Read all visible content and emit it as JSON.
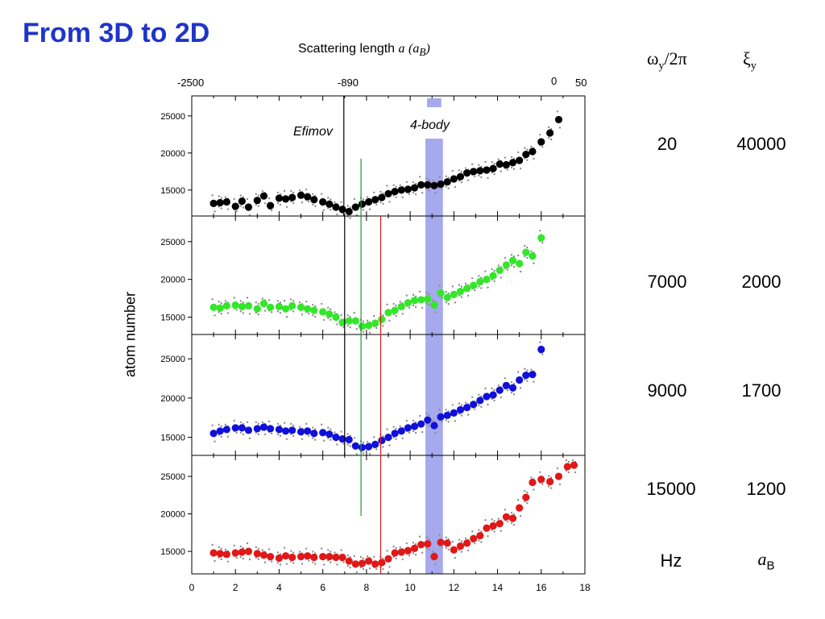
{
  "slide": {
    "title": "From 3D to 2D",
    "top_axis_label": "Scattering length",
    "top_axis_symbol": "a",
    "top_axis_unit": "(a",
    "top_axis_unit_sub": "B",
    "top_axis_unit_close": ")",
    "top_ticks": [
      "-2500",
      "-890",
      "0",
      "50"
    ],
    "ylabel": "atom number",
    "annot_efimov": "Efimov",
    "annot_4body": "4-body"
  },
  "table": {
    "col1_head": "ω",
    "col1_head_sub": "y",
    "col1_head_tail": "/2π",
    "col2_head": "ξ",
    "col2_head_sub": "y",
    "rows": [
      {
        "omega": "20",
        "xi": "40000"
      },
      {
        "omega": "7000",
        "xi": "2000"
      },
      {
        "omega": "9000",
        "xi": "1700"
      },
      {
        "omega": "15000",
        "xi": "1200"
      }
    ],
    "unit_omega": "Hz",
    "unit_xi": "a",
    "unit_xi_sub": "B"
  },
  "chart_data": {
    "type": "scatter",
    "xlim": [
      0,
      18
    ],
    "ylim": [
      11500,
      27500
    ],
    "x_ticks": [
      "0",
      "2",
      "4",
      "6",
      "8",
      "10",
      "12",
      "14",
      "16",
      "18"
    ],
    "y_ticks": [
      "15000",
      "20000",
      "25000"
    ],
    "ylabel": "atom number",
    "vlines": {
      "black": 7.0,
      "green": 7.75,
      "red": 8.65
    },
    "band": [
      10.7,
      11.5
    ],
    "series": [
      {
        "color": "#000000",
        "x": [
          1.0,
          1.3,
          1.6,
          2.0,
          2.3,
          2.6,
          3.0,
          3.3,
          3.6,
          4.0,
          4.3,
          4.6,
          5.0,
          5.3,
          5.6,
          6.0,
          6.3,
          6.6,
          6.9,
          7.2,
          7.5,
          7.8,
          8.1,
          8.4,
          8.7,
          9.0,
          9.3,
          9.6,
          9.9,
          10.2,
          10.5,
          10.8,
          11.1,
          11.4,
          11.7,
          12.0,
          12.3,
          12.6,
          12.9,
          13.2,
          13.5,
          13.8,
          14.1,
          14.4,
          14.7,
          15.0,
          15.3,
          15.6,
          16.0,
          16.4,
          16.8
        ],
        "y": [
          13200,
          13300,
          13400,
          12800,
          13500,
          12700,
          13600,
          14200,
          12900,
          13900,
          13800,
          14000,
          14300,
          14100,
          13700,
          13400,
          13100,
          12700,
          12400,
          12100,
          12700,
          13100,
          13400,
          13700,
          14000,
          14500,
          14800,
          15000,
          15100,
          15300,
          15700,
          15700,
          15600,
          15800,
          16100,
          16500,
          16800,
          17300,
          17500,
          17600,
          17700,
          17900,
          18500,
          18400,
          18700,
          19000,
          19800,
          20200,
          21500,
          22700,
          24500
        ]
      },
      {
        "color": "#33e62a",
        "x": [
          1.0,
          1.3,
          1.6,
          2.0,
          2.3,
          2.6,
          3.0,
          3.3,
          3.6,
          4.0,
          4.3,
          4.6,
          5.0,
          5.3,
          5.6,
          6.0,
          6.3,
          6.6,
          6.9,
          7.2,
          7.5,
          7.8,
          8.1,
          8.4,
          8.7,
          9.0,
          9.3,
          9.6,
          9.9,
          10.2,
          10.5,
          10.8,
          11.1,
          11.4,
          11.7,
          12.0,
          12.3,
          12.6,
          12.9,
          13.2,
          13.5,
          13.8,
          14.1,
          14.4,
          14.7,
          15.0,
          15.3,
          15.6,
          16.0
        ],
        "y": [
          16300,
          16200,
          16500,
          16600,
          16400,
          16500,
          16100,
          16800,
          16300,
          16400,
          16100,
          16500,
          16300,
          16100,
          15900,
          15700,
          15400,
          15000,
          14300,
          14500,
          14500,
          13800,
          13900,
          14200,
          14700,
          15600,
          15900,
          16400,
          16900,
          17200,
          17300,
          17400,
          16600,
          18200,
          17600,
          18000,
          18400,
          18800,
          19200,
          19700,
          20000,
          20500,
          21200,
          21900,
          22500,
          22100,
          23600,
          23100,
          25500
        ]
      },
      {
        "color": "#1010d8",
        "x": [
          1.0,
          1.3,
          1.6,
          2.0,
          2.3,
          2.6,
          3.0,
          3.3,
          3.6,
          4.0,
          4.3,
          4.6,
          5.0,
          5.3,
          5.6,
          6.0,
          6.3,
          6.6,
          6.9,
          7.2,
          7.5,
          7.8,
          8.1,
          8.4,
          8.7,
          9.0,
          9.3,
          9.6,
          9.9,
          10.2,
          10.5,
          10.8,
          11.1,
          11.4,
          11.7,
          12.0,
          12.3,
          12.6,
          12.9,
          13.2,
          13.5,
          13.8,
          14.1,
          14.4,
          14.7,
          15.0,
          15.3,
          15.6,
          16.0
        ],
        "y": [
          15500,
          15800,
          16000,
          16200,
          16200,
          15900,
          16100,
          16300,
          16100,
          16000,
          15800,
          15900,
          15700,
          15800,
          15500,
          15600,
          15400,
          15000,
          14800,
          14700,
          13900,
          13700,
          13800,
          14100,
          14600,
          15000,
          15500,
          15800,
          16200,
          16400,
          16700,
          17200,
          16500,
          17600,
          17800,
          18100,
          18500,
          18800,
          19200,
          19700,
          20200,
          20400,
          21000,
          21600,
          21300,
          22300,
          22900,
          23000,
          26200
        ]
      },
      {
        "color": "#e01818",
        "x": [
          1.0,
          1.3,
          1.6,
          2.0,
          2.3,
          2.6,
          3.0,
          3.3,
          3.6,
          4.0,
          4.3,
          4.6,
          5.0,
          5.3,
          5.6,
          6.0,
          6.3,
          6.6,
          6.9,
          7.2,
          7.5,
          7.8,
          8.1,
          8.4,
          8.7,
          9.0,
          9.3,
          9.6,
          9.9,
          10.2,
          10.5,
          10.8,
          11.1,
          11.4,
          11.7,
          12.0,
          12.3,
          12.6,
          12.9,
          13.2,
          13.5,
          13.8,
          14.1,
          14.4,
          14.7,
          15.0,
          15.3,
          15.6,
          16.0,
          16.4,
          16.8,
          17.2,
          17.5
        ],
        "y": [
          14800,
          14700,
          14600,
          14800,
          14900,
          15000,
          14700,
          14500,
          14300,
          14100,
          14400,
          14200,
          14300,
          14400,
          14200,
          14300,
          14300,
          14200,
          14200,
          13700,
          13300,
          13400,
          13700,
          13300,
          13500,
          14000,
          14800,
          14900,
          15100,
          15400,
          15900,
          16000,
          14300,
          16200,
          16100,
          15200,
          15700,
          16100,
          16700,
          17100,
          18100,
          18400,
          18700,
          19600,
          19400,
          20800,
          22200,
          24200,
          24600,
          24300,
          25000,
          26300,
          26500
        ]
      }
    ]
  }
}
